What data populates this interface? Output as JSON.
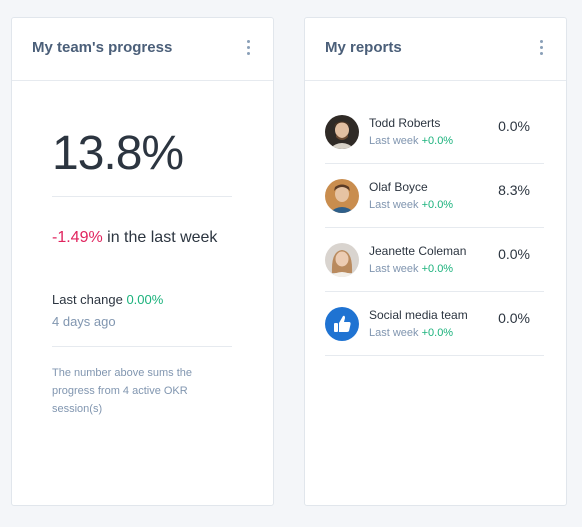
{
  "team_progress": {
    "title": "My team's progress",
    "value": "13.8%",
    "weekly_change": "-1.49%",
    "weekly_suffix": " in the last week",
    "last_change_label": "Last change ",
    "last_change_value": "0.00%",
    "last_change_time": "4 days ago",
    "note": "The number above sums the progress from 4 active OKR session(s)"
  },
  "reports": {
    "title": "My reports",
    "items": [
      {
        "name": "Todd Roberts",
        "sub_label": "Last week ",
        "sub_value": "+0.0%",
        "value": "0.0%",
        "avatar": "person-avatar"
      },
      {
        "name": "Olaf Boyce",
        "sub_label": "Last week ",
        "sub_value": "+0.0%",
        "value": "8.3%",
        "avatar": "person-avatar"
      },
      {
        "name": "Jeanette Coleman",
        "sub_label": "Last week ",
        "sub_value": "+0.0%",
        "value": "0.0%",
        "avatar": "person-avatar"
      },
      {
        "name": "Social media team",
        "sub_label": "Last week ",
        "sub_value": "+0.0%",
        "value": "0.0%",
        "avatar": "thumbs-up-icon"
      }
    ]
  },
  "colors": {
    "negative": "#e0245e",
    "positive": "#1bb27c",
    "accent_blue": "#1f73d2"
  }
}
